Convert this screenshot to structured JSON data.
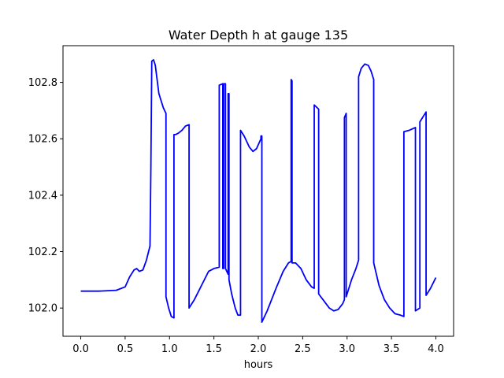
{
  "chart_data": {
    "type": "line",
    "title": "Water Depth h at gauge 135",
    "xlabel": "hours",
    "ylabel": "",
    "xlim": [
      -0.2,
      4.2
    ],
    "ylim": [
      101.9,
      102.93
    ],
    "x_ticks": [
      0.0,
      0.5,
      1.0,
      1.5,
      2.0,
      2.5,
      3.0,
      3.5,
      4.0
    ],
    "x_tick_labels": [
      "0.0",
      "0.5",
      "1.0",
      "1.5",
      "2.0",
      "2.5",
      "3.0",
      "3.5",
      "4.0"
    ],
    "y_ticks": [
      102.0,
      102.2,
      102.4,
      102.6,
      102.8
    ],
    "y_tick_labels": [
      "102.0",
      "102.2",
      "102.4",
      "102.6",
      "102.8"
    ],
    "grid": false,
    "legend": "none",
    "series": [
      {
        "color": "#0000ff",
        "x": [
          0.0,
          0.2,
          0.4,
          0.5,
          0.55,
          0.6,
          0.63,
          0.66,
          0.7,
          0.74,
          0.78,
          0.79,
          0.8,
          0.82,
          0.84,
          0.88,
          0.93,
          0.96,
          0.96,
          0.99,
          1.02,
          1.05,
          1.05,
          1.07,
          1.1,
          1.14,
          1.18,
          1.22,
          1.22,
          1.28,
          1.36,
          1.44,
          1.5,
          1.56,
          1.56,
          1.6,
          1.6,
          1.61,
          1.61,
          1.63,
          1.63,
          1.66,
          1.66,
          1.67,
          1.67,
          1.7,
          1.74,
          1.77,
          1.8,
          1.8,
          1.84,
          1.9,
          1.94,
          1.98,
          2.03,
          2.03,
          2.04,
          2.04,
          2.1,
          2.2,
          2.28,
          2.34,
          2.37,
          2.37,
          2.38,
          2.38,
          2.42,
          2.48,
          2.54,
          2.6,
          2.63,
          2.63,
          2.68,
          2.68,
          2.74,
          2.8,
          2.85,
          2.9,
          2.95,
          2.97,
          2.97,
          2.99,
          2.99,
          3.05,
          3.1,
          3.13,
          3.13,
          3.16,
          3.2,
          3.24,
          3.27,
          3.3,
          3.3,
          3.36,
          3.42,
          3.48,
          3.54,
          3.6,
          3.64,
          3.64,
          3.7,
          3.77,
          3.77,
          3.82,
          3.82,
          3.86,
          3.89,
          3.89,
          3.94,
          4.0
        ],
        "y": [
          102.06,
          102.06,
          102.063,
          102.075,
          102.11,
          102.135,
          102.14,
          102.13,
          102.135,
          102.17,
          102.22,
          102.5,
          102.875,
          102.88,
          102.86,
          102.76,
          102.71,
          102.69,
          102.04,
          102.0,
          101.97,
          101.965,
          102.615,
          102.615,
          102.62,
          102.63,
          102.645,
          102.65,
          102.0,
          102.03,
          102.08,
          102.13,
          102.14,
          102.145,
          102.79,
          102.795,
          102.14,
          102.14,
          102.795,
          102.795,
          102.14,
          102.12,
          102.76,
          102.76,
          102.1,
          102.05,
          102.0,
          101.975,
          101.975,
          102.63,
          102.61,
          102.57,
          102.555,
          102.565,
          102.6,
          102.61,
          102.61,
          101.95,
          101.99,
          102.07,
          102.13,
          102.16,
          102.165,
          102.81,
          102.805,
          102.16,
          102.16,
          102.14,
          102.1,
          102.075,
          102.07,
          102.72,
          102.705,
          102.05,
          102.025,
          102.0,
          101.99,
          101.995,
          102.015,
          102.03,
          102.675,
          102.69,
          102.04,
          102.1,
          102.14,
          102.17,
          102.82,
          102.85,
          102.865,
          102.86,
          102.84,
          102.81,
          102.16,
          102.08,
          102.03,
          102.0,
          101.98,
          101.975,
          101.97,
          102.625,
          102.63,
          102.64,
          101.99,
          102.0,
          102.66,
          102.68,
          102.695,
          102.045,
          102.07,
          102.108
        ]
      }
    ]
  }
}
